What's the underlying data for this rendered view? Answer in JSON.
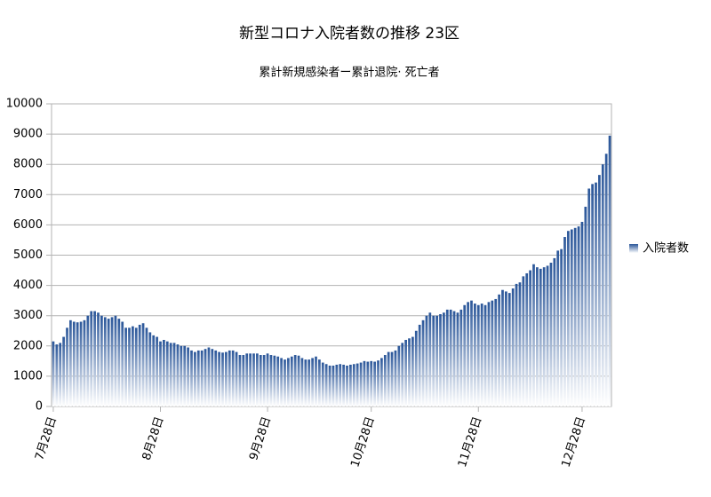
{
  "chart_data": {
    "type": "bar",
    "title": "新型コロナ入院者数の推移 23区",
    "subtitle": "累計新規感染者ー累計退院· 死亡者",
    "categories": [
      "7月28日",
      null,
      null,
      null,
      null,
      null,
      null,
      null,
      null,
      null,
      null,
      null,
      null,
      null,
      null,
      null,
      null,
      null,
      null,
      null,
      null,
      null,
      null,
      null,
      null,
      null,
      null,
      null,
      null,
      null,
      null,
      "8月28日",
      null,
      null,
      null,
      null,
      null,
      null,
      null,
      null,
      null,
      null,
      null,
      null,
      null,
      null,
      null,
      null,
      null,
      null,
      null,
      null,
      null,
      null,
      null,
      null,
      null,
      null,
      null,
      null,
      null,
      null,
      "9月28日",
      null,
      null,
      null,
      null,
      null,
      null,
      null,
      null,
      null,
      null,
      null,
      null,
      null,
      null,
      null,
      null,
      null,
      null,
      null,
      null,
      null,
      null,
      null,
      null,
      null,
      null,
      null,
      null,
      null,
      "10月28日",
      null,
      null,
      null,
      null,
      null,
      null,
      null,
      null,
      null,
      null,
      null,
      null,
      null,
      null,
      null,
      null,
      null,
      null,
      null,
      null,
      null,
      null,
      null,
      null,
      null,
      null,
      null,
      null,
      null,
      null,
      "11月28日",
      null,
      null,
      null,
      null,
      null,
      null,
      null,
      null,
      null,
      null,
      null,
      null,
      null,
      null,
      null,
      null,
      null,
      null,
      null,
      null,
      null,
      null,
      null,
      null,
      null,
      null,
      null,
      null,
      null,
      "12月28日",
      null,
      null,
      null,
      null,
      null,
      null,
      null,
      null
    ],
    "series": [
      {
        "name": "入院者数",
        "color": "#2a5699",
        "values": [
          2150,
          2050,
          2100,
          2300,
          2600,
          2850,
          2800,
          2780,
          2800,
          2850,
          3000,
          3150,
          3150,
          3100,
          3000,
          2950,
          2900,
          2950,
          3000,
          2900,
          2800,
          2600,
          2600,
          2650,
          2600,
          2700,
          2750,
          2600,
          2450,
          2350,
          2300,
          2150,
          2200,
          2150,
          2100,
          2100,
          2050,
          2000,
          2000,
          1950,
          1850,
          1800,
          1850,
          1850,
          1900,
          1950,
          1900,
          1850,
          1800,
          1780,
          1800,
          1850,
          1850,
          1800,
          1700,
          1700,
          1750,
          1750,
          1750,
          1750,
          1700,
          1700,
          1750,
          1700,
          1680,
          1650,
          1600,
          1550,
          1600,
          1650,
          1700,
          1680,
          1600,
          1550,
          1550,
          1600,
          1650,
          1550,
          1450,
          1400,
          1350,
          1350,
          1380,
          1400,
          1380,
          1350,
          1380,
          1400,
          1420,
          1450,
          1500,
          1480,
          1500,
          1480,
          1520,
          1600,
          1700,
          1800,
          1800,
          1850,
          2000,
          2100,
          2200,
          2250,
          2300,
          2500,
          2700,
          2850,
          3000,
          3100,
          3000,
          3000,
          3050,
          3100,
          3200,
          3200,
          3150,
          3100,
          3200,
          3350,
          3450,
          3500,
          3400,
          3350,
          3400,
          3350,
          3450,
          3500,
          3550,
          3700,
          3850,
          3800,
          3750,
          3900,
          4050,
          4100,
          4300,
          4400,
          4500,
          4700,
          4600,
          4550,
          4600,
          4650,
          4750,
          4900,
          5150,
          5200,
          5600,
          5800,
          5850,
          5900,
          5950,
          6100,
          6600,
          7200,
          7350,
          7400,
          7650,
          8000,
          8350,
          8950
        ]
      }
    ],
    "ylim": [
      0,
      10000
    ],
    "yticks": [
      0,
      1000,
      2000,
      3000,
      4000,
      5000,
      6000,
      7000,
      8000,
      9000,
      10000
    ],
    "grid": true,
    "legend": "right"
  }
}
